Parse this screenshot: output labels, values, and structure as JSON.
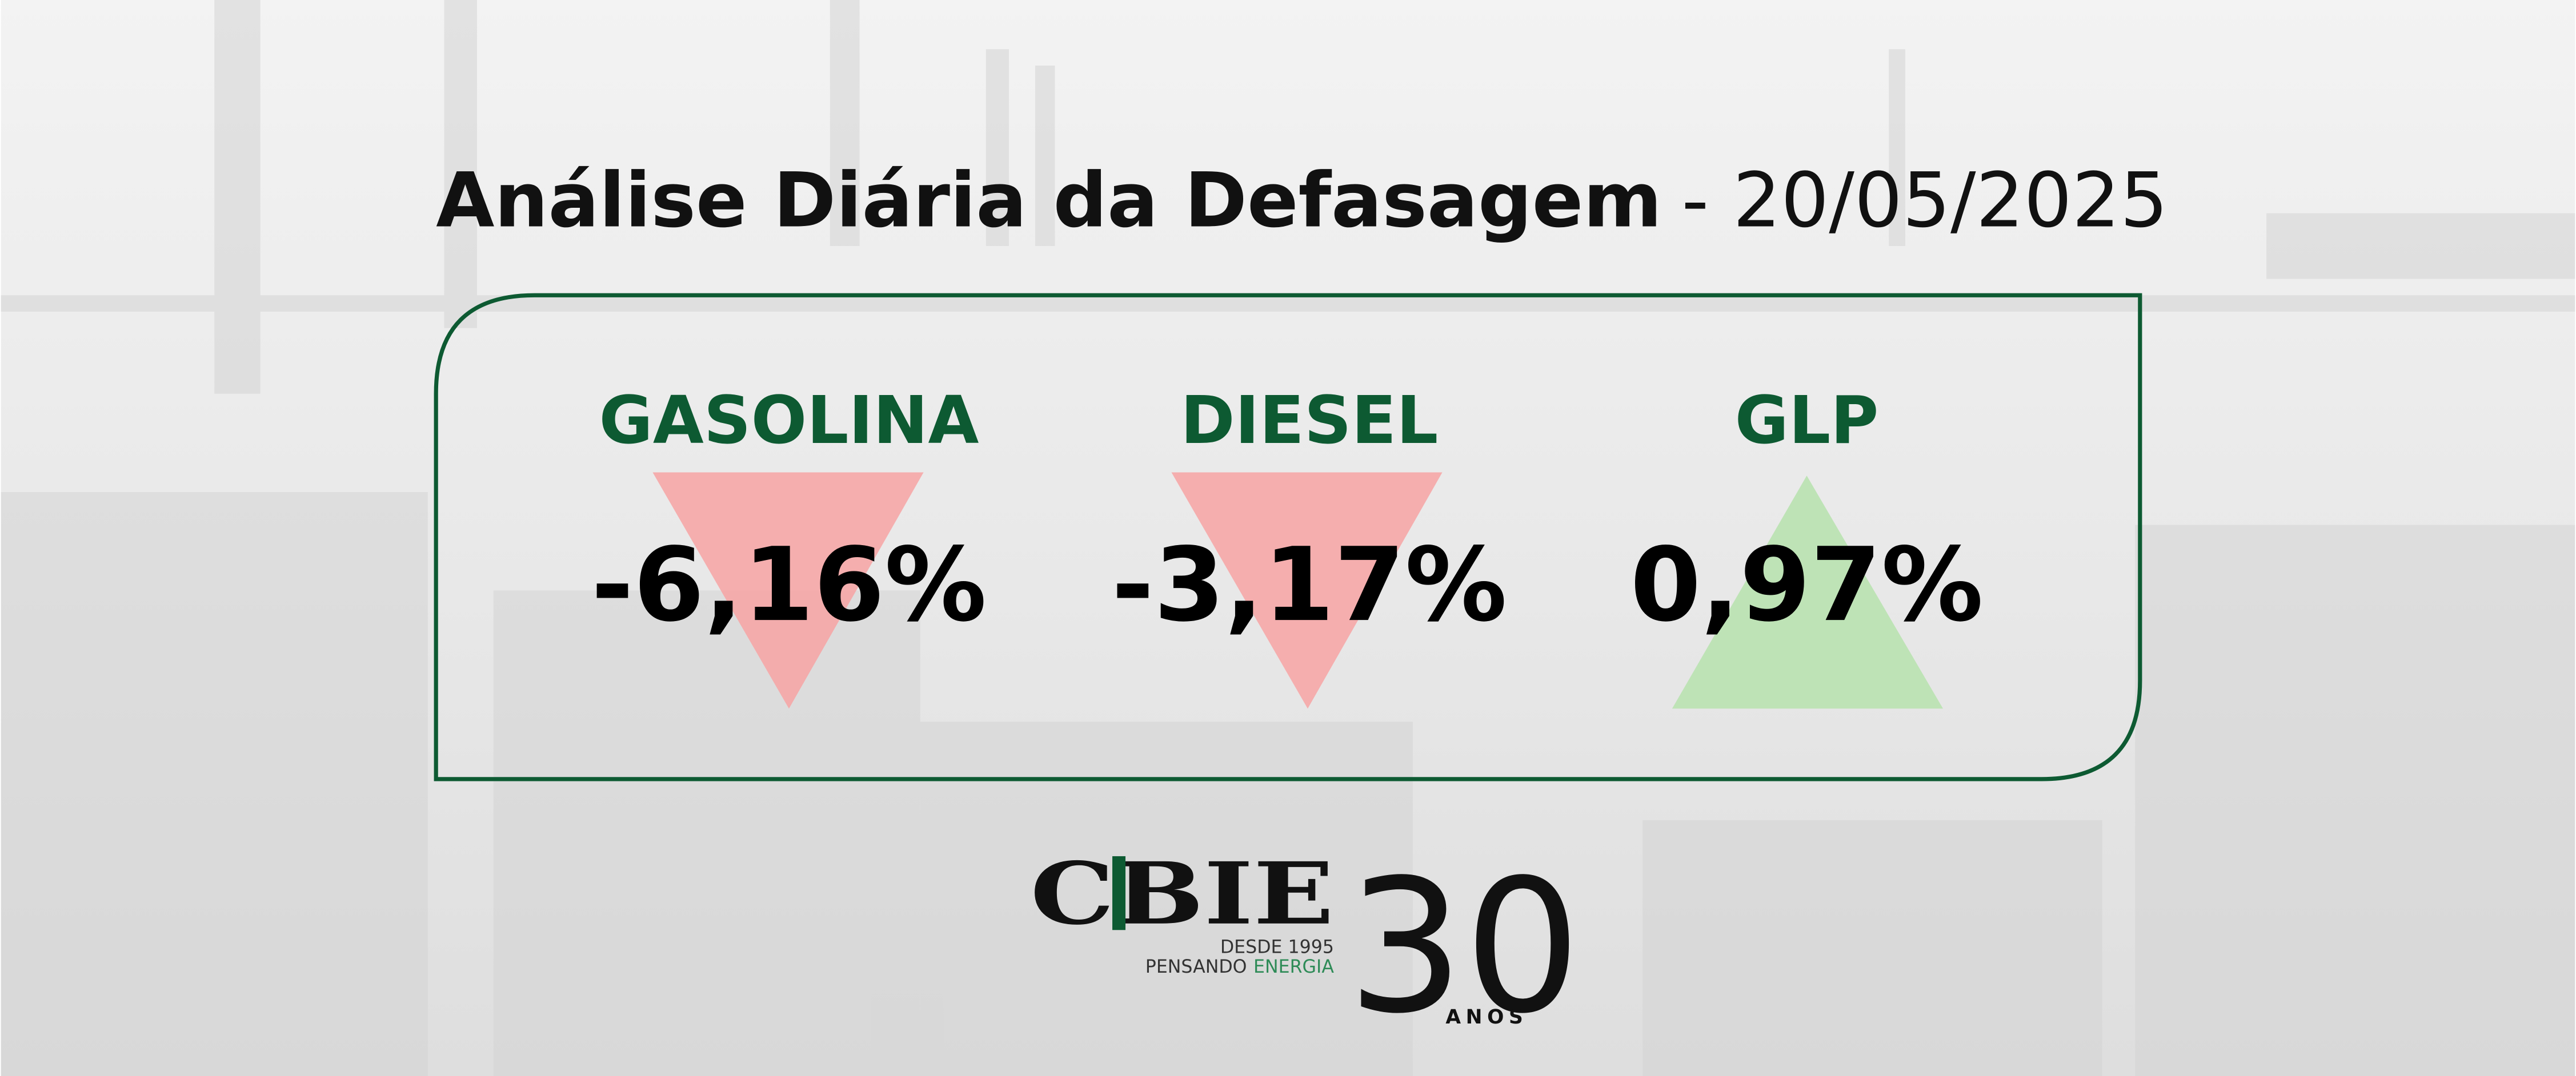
{
  "header": {
    "title": "Análise Diária da Defasagem",
    "date": "- 20/05/2025"
  },
  "items": [
    {
      "name": "GASOLINA",
      "value": "-6,16%"
    },
    {
      "name": "DIESEL",
      "value": "-3,17%"
    },
    {
      "name": "GLP",
      "value": "0,97%"
    }
  ],
  "logo": {
    "brand": "CBIE",
    "since": "DESDE 1995",
    "tagline": "PENSANDO",
    "tagline_accent": "ENERGIA",
    "anniversary": "30",
    "years": "ANOS"
  }
}
